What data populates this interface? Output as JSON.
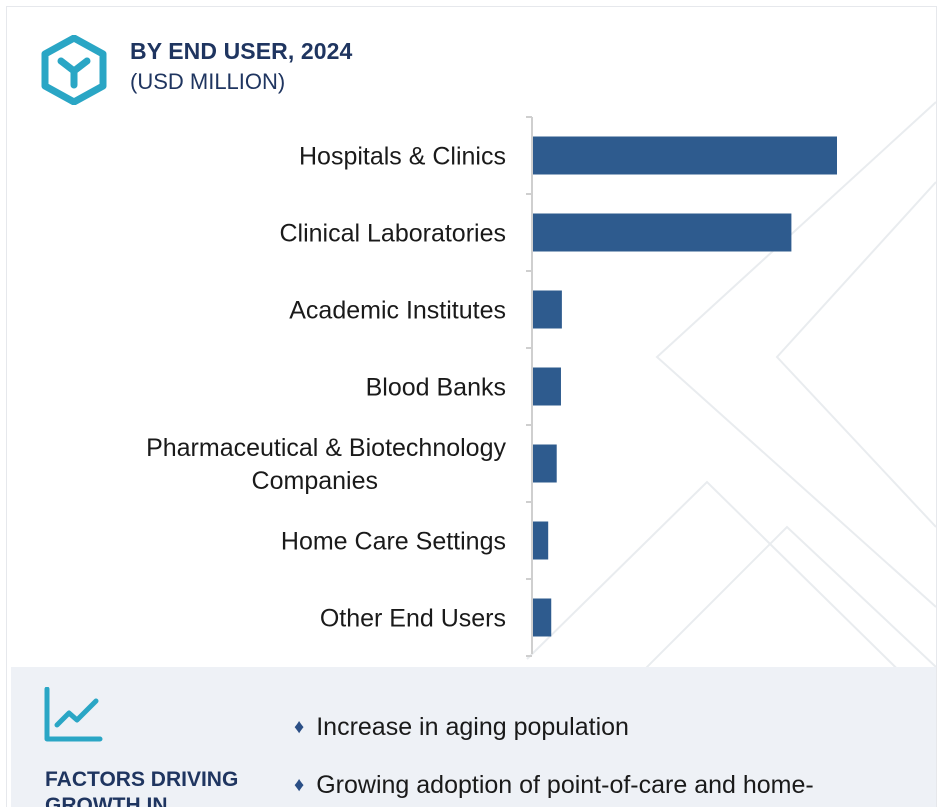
{
  "header": {
    "title": "BY END USER, 2024",
    "subtitle": "(USD MILLION)",
    "logo_icon": "cube-y-icon"
  },
  "colors": {
    "bar": "#2e5b8e",
    "accent": "#2aa6c5",
    "heading": "#1f3560",
    "panel_bg": "#eef1f6"
  },
  "chart_data": {
    "type": "bar",
    "orientation": "horizontal",
    "categories": [
      "Hospitals & Clinics",
      "Clinical Laboratories",
      "Academic Institutes",
      "Blood Banks",
      "Pharmaceutical & Biotechnology Companies",
      "Home Care Settings",
      "Other End Users"
    ],
    "category_lines": [
      [
        "Hospitals & Clinics"
      ],
      [
        "Clinical Laboratories"
      ],
      [
        "Academic Institutes"
      ],
      [
        "Blood Banks"
      ],
      [
        "Pharmaceutical & Biotechnology",
        "Companies"
      ],
      [
        "Home Care Settings"
      ],
      [
        "Other End Users"
      ]
    ],
    "values": [
      100,
      85,
      9.5,
      9.2,
      7.8,
      5,
      6
    ],
    "xlim": [
      0,
      100
    ],
    "grid": false,
    "legend": "none"
  },
  "factors": {
    "title": "FACTORS DRIVING GROWTH IN",
    "icon": "line-chart-icon",
    "bullets": [
      "Increase in aging population",
      "Growing adoption of point-of-care and home-"
    ]
  }
}
